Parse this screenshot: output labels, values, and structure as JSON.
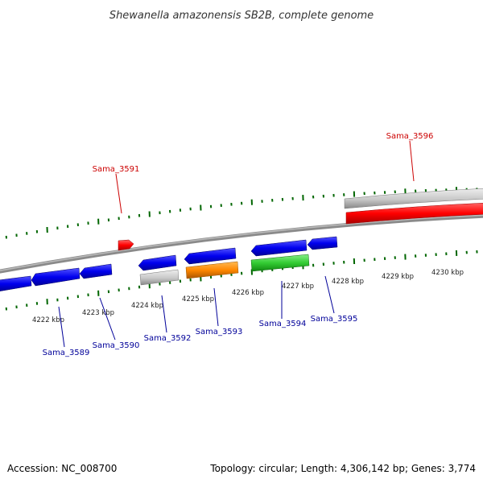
{
  "title": "Shewanella amazonensis SB2B, complete genome",
  "footer": {
    "accession": "Accession: NC_008700",
    "stats": "Topology: circular; Length: 4,306,142 bp; Genes: 3,774"
  },
  "colors": {
    "forward_label": "#cc0000",
    "reverse_label": "#000099",
    "forward_gene": "#ff0000",
    "reverse_gene": "#0000ee",
    "rrna": "#c8c8c8",
    "orange": "#ff8800",
    "green": "#33cc33",
    "backbone": "#999999",
    "tick": "#006600"
  },
  "scale": {
    "tick_labels": [
      "4222 kbp",
      "4223 kbp",
      "4224 kbp",
      "4225 kbp",
      "4226 kbp",
      "4227 kbp",
      "4228 kbp",
      "4229 kbp",
      "4230 kbp"
    ]
  },
  "gene_labels": {
    "forward": [
      "Sama_3591",
      "Sama_3596"
    ],
    "reverse": [
      "Sama_3589",
      "Sama_3590",
      "Sama_3592",
      "Sama_3593",
      "Sama_3594",
      "Sama_3595"
    ]
  }
}
